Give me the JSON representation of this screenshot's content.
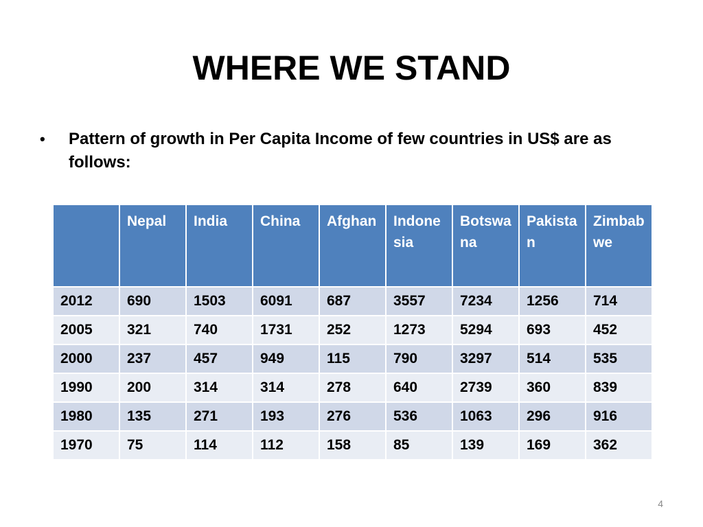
{
  "slide": {
    "title": "WHERE WE STAND",
    "bullet": "Pattern of growth in Per Capita Income of few countries in US$ are as follows:",
    "page_number": "4"
  },
  "table": {
    "corner": "",
    "headers": [
      "Nepal",
      "India",
      "China",
      "Afghan",
      "Indonesia",
      "Botswana",
      "Pakistan",
      "Zimbabwe"
    ],
    "rows": [
      {
        "year": "2012",
        "values": [
          "690",
          "1503",
          "6091",
          "687",
          "3557",
          "7234",
          "1256",
          "714"
        ]
      },
      {
        "year": "2005",
        "values": [
          "321",
          "740",
          "1731",
          "252",
          "1273",
          "5294",
          "693",
          "452"
        ]
      },
      {
        "year": "2000",
        "values": [
          "237",
          "457",
          "949",
          "115",
          "790",
          "3297",
          "514",
          "535"
        ]
      },
      {
        "year": "1990",
        "values": [
          "200",
          "314",
          "314",
          "278",
          "640",
          "2739",
          "360",
          "839"
        ]
      },
      {
        "year": "1980",
        "values": [
          "135",
          "271",
          "193",
          "276",
          "536",
          "1063",
          "296",
          "916"
        ]
      },
      {
        "year": "1970",
        "values": [
          "75",
          "114",
          "112",
          "158",
          "85",
          "139",
          "169",
          "362"
        ]
      }
    ]
  },
  "colors": {
    "header_bg": "#4f81bd",
    "row_dark": "#d0d8e8",
    "row_light": "#e9edf4"
  }
}
